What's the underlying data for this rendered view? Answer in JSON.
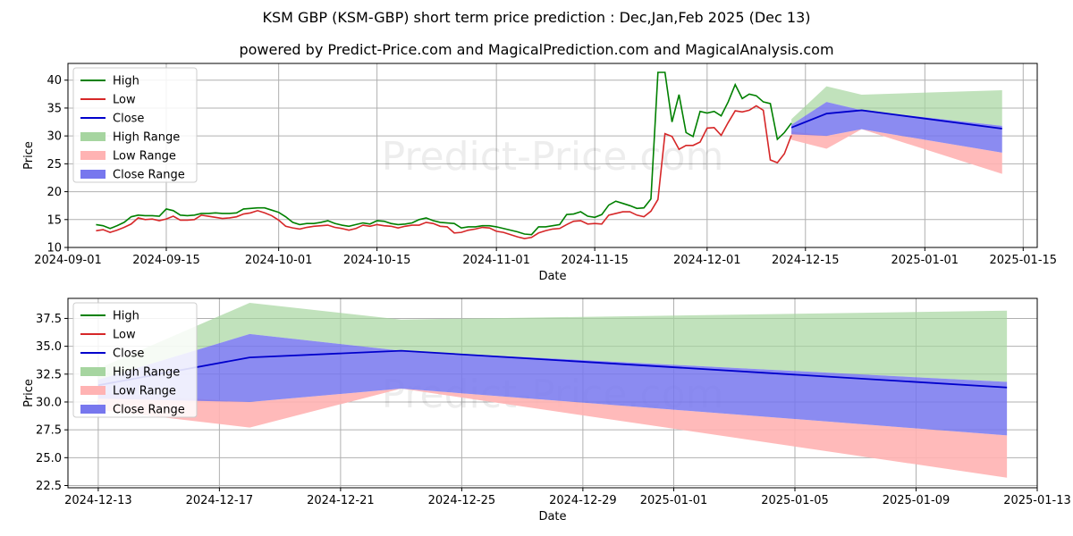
{
  "title": "KSM GBP (KSM-GBP) short term price prediction : Dec,Jan,Feb 2025 (Dec 13)",
  "subtitle": "powered by Predict-Price.com and MagicalPrediction.com and MagicalAnalysis.com",
  "watermark": "Predict-Price.com",
  "colors": {
    "high": "#008000",
    "low": "#d62728",
    "close": "#0000cc",
    "high_range": "#a6d5a0",
    "low_range": "#ffb3b3",
    "close_range": "#7777ee"
  },
  "legend": [
    "High",
    "Low",
    "Close",
    "High Range",
    "Low Range",
    "Close Range"
  ],
  "chart_data": [
    {
      "type": "line",
      "xlabel": "Date",
      "ylabel": "Price",
      "ylim": [
        10,
        43
      ],
      "yticks": [
        10,
        15,
        20,
        25,
        30,
        35,
        40
      ],
      "xlim": [
        "2024-09-01",
        "2025-01-17"
      ],
      "xticks": [
        "2024-09-01",
        "2024-09-15",
        "2024-10-01",
        "2024-10-15",
        "2024-11-01",
        "2024-11-15",
        "2024-12-01",
        "2024-12-15",
        "2025-01-01",
        "2025-01-15"
      ],
      "history_start": "2024-09-05",
      "series": [
        {
          "name": "High",
          "values": [
            14.1,
            13.9,
            13.4,
            13.9,
            14.5,
            15.5,
            15.8,
            15.7,
            15.7,
            15.6,
            16.9,
            16.6,
            15.8,
            15.7,
            15.8,
            16.1,
            16.1,
            16.2,
            16.1,
            16.1,
            16.2,
            16.9,
            17.0,
            17.1,
            17.1,
            16.7,
            16.3,
            15.5,
            14.5,
            14.1,
            14.3,
            14.3,
            14.5,
            14.8,
            14.3,
            14.0,
            13.8,
            14.1,
            14.4,
            14.2,
            14.8,
            14.7,
            14.3,
            14.1,
            14.2,
            14.4,
            15.0,
            15.3,
            14.8,
            14.5,
            14.4,
            14.3,
            13.5,
            13.7,
            13.7,
            13.9,
            13.9,
            13.7,
            13.4,
            13.1,
            12.8,
            12.4,
            12.3,
            13.7,
            13.7,
            13.9,
            14.1,
            15.9,
            16.0,
            16.4,
            15.6,
            15.4,
            15.9,
            17.6,
            18.3,
            17.9,
            17.5,
            17.0,
            17.1,
            18.7,
            41.4,
            41.4,
            32.5,
            37.4,
            30.6,
            29.9,
            34.4,
            34.1,
            34.4,
            33.6,
            36.1,
            39.2,
            36.7,
            37.5,
            37.2,
            36.1,
            35.8,
            29.4,
            30.6,
            32.3
          ]
        },
        {
          "name": "Low",
          "values": [
            13.0,
            13.2,
            12.7,
            13.1,
            13.6,
            14.2,
            15.3,
            15.0,
            15.1,
            14.8,
            15.1,
            15.6,
            14.9,
            14.9,
            15.0,
            15.8,
            15.6,
            15.4,
            15.2,
            15.3,
            15.5,
            16.0,
            16.2,
            16.6,
            16.2,
            15.7,
            14.9,
            13.8,
            13.5,
            13.3,
            13.6,
            13.8,
            13.9,
            14.0,
            13.6,
            13.4,
            13.1,
            13.4,
            14.0,
            13.8,
            14.1,
            13.9,
            13.8,
            13.5,
            13.8,
            14.0,
            14.0,
            14.5,
            14.3,
            13.8,
            13.7,
            12.6,
            12.7,
            13.1,
            13.3,
            13.6,
            13.5,
            12.9,
            12.7,
            12.3,
            11.9,
            11.6,
            11.8,
            12.6,
            13.0,
            13.3,
            13.4,
            14.1,
            14.7,
            14.8,
            14.2,
            14.3,
            14.2,
            15.8,
            16.1,
            16.4,
            16.4,
            15.8,
            15.5,
            16.5,
            18.6,
            30.4,
            29.9,
            27.6,
            28.3,
            28.3,
            28.9,
            31.4,
            31.5,
            30.1,
            32.4,
            34.5,
            34.3,
            34.6,
            35.4,
            34.6,
            25.7,
            25.2,
            26.8,
            30.1
          ]
        },
        {
          "name": "Close",
          "values": []
        }
      ]
    },
    {
      "type": "area",
      "xlabel": "Date",
      "ylabel": "Price",
      "ylim": [
        22.3,
        39.3
      ],
      "yticks": [
        22.5,
        25.0,
        27.5,
        30.0,
        32.5,
        35.0,
        37.5
      ],
      "xlim": [
        "2024-12-12",
        "2025-01-13"
      ],
      "xticks": [
        "2024-12-13",
        "2024-12-17",
        "2024-12-21",
        "2024-12-25",
        "2024-12-29",
        "2025-01-01",
        "2025-01-05",
        "2025-01-09",
        "2025-01-13"
      ],
      "x": [
        "2024-12-13",
        "2024-12-18",
        "2024-12-23",
        "2025-01-12"
      ],
      "series": [
        {
          "name": "Close",
          "values": [
            31.5,
            34.0,
            34.6,
            31.3
          ]
        },
        {
          "name": "High Range",
          "lower": [
            32.0,
            36.1,
            34.6,
            31.8
          ],
          "upper": [
            33.0,
            38.9,
            37.4,
            38.2
          ]
        },
        {
          "name": "Low Range",
          "lower": [
            29.3,
            27.7,
            31.2,
            23.2
          ],
          "upper": [
            30.8,
            30.0,
            31.2,
            27.0
          ]
        },
        {
          "name": "Close Range",
          "lower": [
            30.3,
            30.0,
            31.2,
            27.0
          ],
          "upper": [
            32.0,
            36.1,
            34.6,
            31.8
          ]
        }
      ]
    }
  ]
}
